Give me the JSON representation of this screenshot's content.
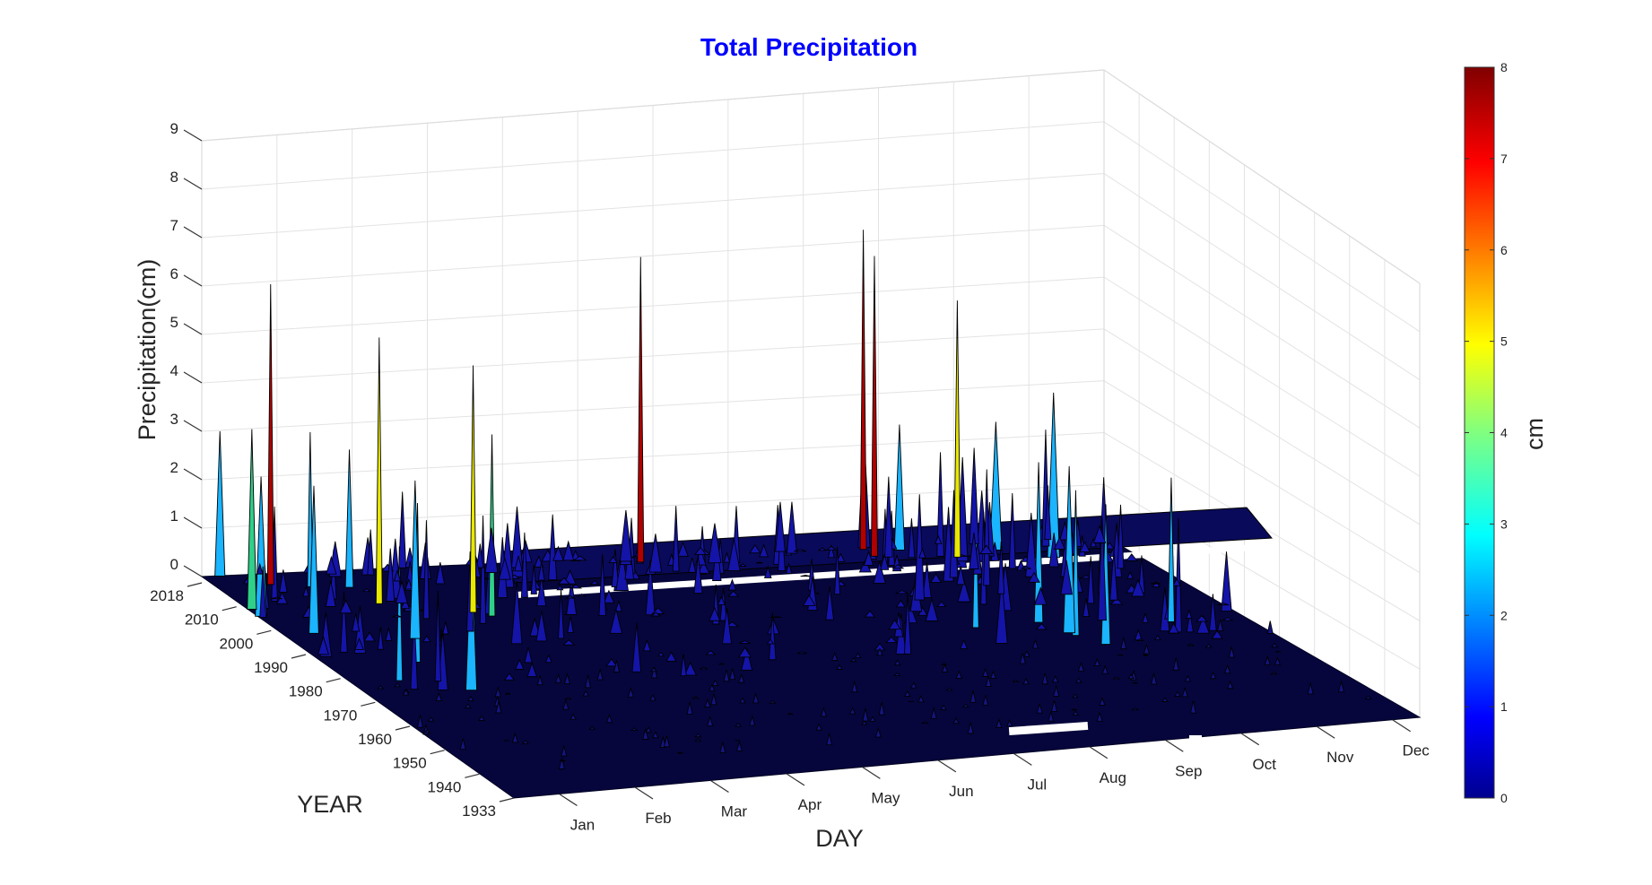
{
  "chart_data": {
    "type": "surface",
    "title": "Total Precipitation",
    "xlabel": "DAY",
    "ylabel": "YEAR",
    "zlabel": "Precipitation(cm)",
    "colorbar_label": "cm",
    "colormap": "jet",
    "title_color": "#0000ff",
    "x_tick_labels": [
      "Jan",
      "Feb",
      "Mar",
      "Apr",
      "May",
      "Jun",
      "Jul",
      "Aug",
      "Sep",
      "Oct",
      "Nov",
      "Dec"
    ],
    "y_tick_labels": [
      "2018",
      "2010",
      "2000",
      "1990",
      "1980",
      "1970",
      "1960",
      "1950",
      "1940",
      "1933"
    ],
    "z_ticks": [
      0,
      1,
      2,
      3,
      4,
      5,
      6,
      7,
      8,
      9
    ],
    "z_range": [
      0,
      9
    ],
    "colorbar_ticks": [
      0,
      1,
      2,
      3,
      4,
      5,
      6,
      7,
      8
    ],
    "color_range": [
      0,
      8
    ],
    "grid": true,
    "peaks": [
      {
        "day": "Jan",
        "year": 2014,
        "value": 6.2
      },
      {
        "day": "Feb",
        "year": 2005,
        "value": 5.5
      },
      {
        "day": "Mar",
        "year": 2000,
        "value": 5.1
      },
      {
        "day": "Jun",
        "year": 2016,
        "value": 6.3
      },
      {
        "day": "Sep",
        "year": 2017,
        "value": 6.6
      },
      {
        "day": "Sep",
        "year": 2014,
        "value": 6.2
      },
      {
        "day": "Oct",
        "year": 2012,
        "value": 5.3
      }
    ]
  }
}
